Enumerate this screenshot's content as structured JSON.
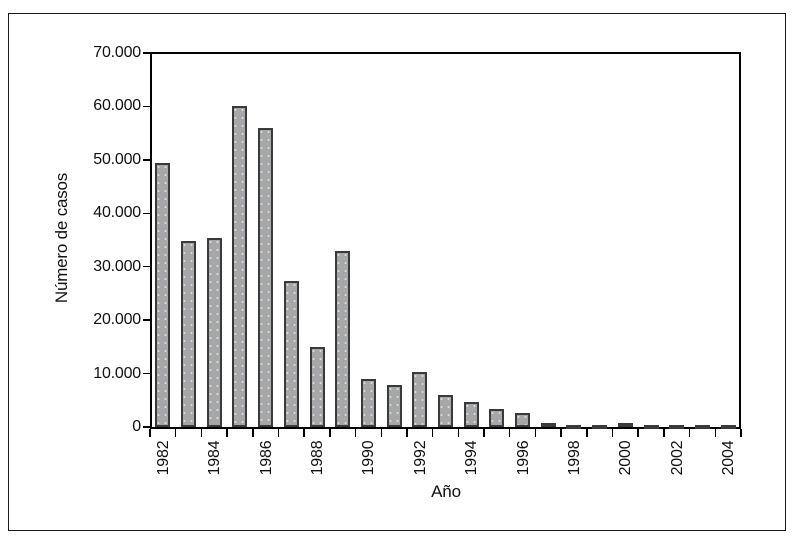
{
  "figure": {
    "background": "#ffffff",
    "border_color": "#1a1a1a"
  },
  "chart_data": {
    "type": "bar",
    "title": "",
    "xlabel": "Año",
    "ylabel": "Número de casos",
    "categories": [
      "1982",
      "1983",
      "1984",
      "1985",
      "1986",
      "1987",
      "1988",
      "1989",
      "1990",
      "1991",
      "1992",
      "1993",
      "1994",
      "1995",
      "1996",
      "1997",
      "1998",
      "1999",
      "2000",
      "2001",
      "2002",
      "2003",
      "2004"
    ],
    "values": [
      49500,
      34800,
      35300,
      60000,
      56000,
      27300,
      15000,
      33000,
      8900,
      7900,
      10300,
      6000,
      4700,
      3300,
      2700,
      700,
      450,
      450,
      700,
      450,
      450,
      450,
      400
    ],
    "ylim": [
      0,
      70000
    ],
    "ytick_values": [
      0,
      10000,
      20000,
      30000,
      40000,
      50000,
      60000,
      70000
    ],
    "ytick_labels": [
      "0",
      "10.000",
      "20.000",
      "30.000",
      "40.000",
      "50.000",
      "60.000",
      "70.000"
    ],
    "x_labeled_categories": [
      "1982",
      "1984",
      "1986",
      "1988",
      "1990",
      "1992",
      "1994",
      "1996",
      "1998",
      "2000",
      "2002",
      "2004"
    ],
    "grid": false,
    "legend": false,
    "bar_fill": "#a7a7a7",
    "bar_border": "#3a3a3a",
    "axis_color": "#000000"
  }
}
